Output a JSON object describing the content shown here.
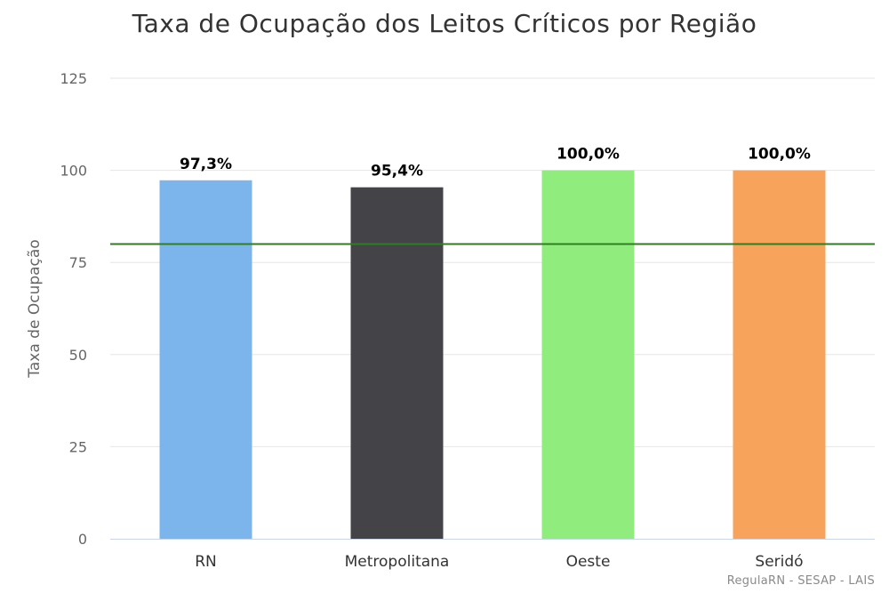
{
  "chart_data": {
    "type": "bar",
    "title": "Taxa de Ocupação dos Leitos Críticos por Região",
    "xlabel": "",
    "ylabel": "Taxa de Ocupação",
    "categories": [
      "RN",
      "Metropolitana",
      "Oeste",
      "Seridó"
    ],
    "values": [
      97.3,
      95.4,
      100.0,
      100.0
    ],
    "data_labels": [
      "97,3%",
      "95,4%",
      "100,0%",
      "100,0%"
    ],
    "colors": [
      "#7cb5ec",
      "#434348",
      "#90ed7d",
      "#f7a35c"
    ],
    "ylim": [
      0,
      125
    ],
    "yticks": [
      0,
      25,
      50,
      75,
      100,
      125
    ],
    "ytick_labels": [
      "0",
      "25",
      "50",
      "75",
      "100",
      "125"
    ],
    "reference_line": {
      "value": 80,
      "color": "#2e7d1f"
    },
    "grid": true,
    "legend": "none"
  },
  "credit": "RegulaRN - SESAP - LAIS"
}
